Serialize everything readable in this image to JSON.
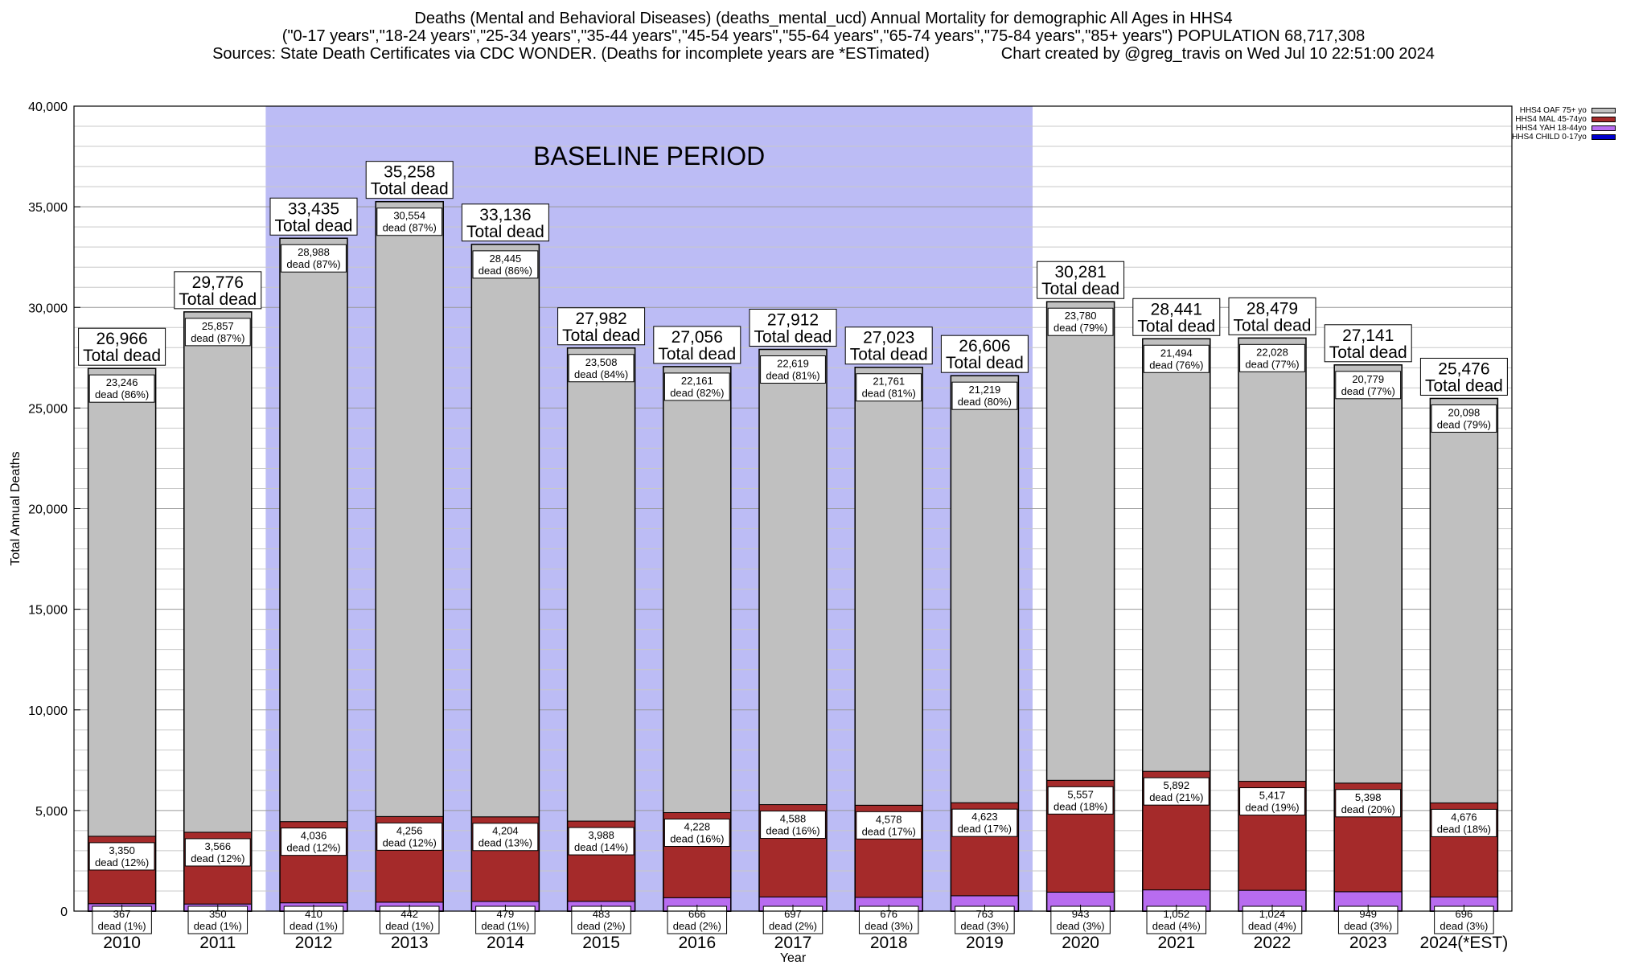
{
  "header": {
    "title_line1": "Deaths (Mental and Behavioral Diseases) (deaths_mental_ucd) Annual Mortality for demographic All Ages in HHS4",
    "title_line2": "(\"0-17 years\",\"18-24 years\",\"25-34 years\",\"35-44 years\",\"45-54 years\",\"55-64 years\",\"65-74 years\",\"75-84 years\",\"85+ years\") POPULATION 68,717,308",
    "title_line3": "Sources: State Death Certificates via CDC WONDER. (Deaths for incomplete years are *ESTimated)                Chart created by @greg_travis on Wed Jul 10 22:51:00 2024"
  },
  "legend": [
    {
      "name": "HHS4 OAF 75+ yo",
      "color": "#c0c0c0"
    },
    {
      "name": "HHS4 MAL 45-74yo",
      "color": "#a52a2a"
    },
    {
      "name": "HHS4 YAH 18-44yo",
      "color": "#b86cf0"
    },
    {
      "name": "HHS4 CHILD 0-17yo",
      "color": "#0000cc"
    }
  ],
  "chart_data": {
    "type": "bar",
    "stacked": true,
    "xlabel": "Year",
    "ylabel": "Total Annual Deaths",
    "ylim": [
      0,
      40000
    ],
    "yticks": [
      0,
      5000,
      10000,
      15000,
      20000,
      25000,
      30000,
      35000,
      40000
    ],
    "ytick_labels": [
      "0",
      "5,000",
      "10,000",
      "15,000",
      "20,000",
      "25,000",
      "30,000",
      "35,000",
      "40,000"
    ],
    "grid": true,
    "legend_position": "top-right",
    "annotation": "BASELINE PERIOD",
    "baseline_period": [
      "2012",
      "2019"
    ],
    "categories": [
      "2010",
      "2011",
      "2012",
      "2013",
      "2014",
      "2015",
      "2016",
      "2017",
      "2018",
      "2019",
      "2020",
      "2021",
      "2022",
      "2023",
      "2024(*EST)"
    ],
    "totals": [
      26966,
      29776,
      33435,
      35258,
      33136,
      27982,
      27056,
      27912,
      27023,
      26606,
      30281,
      28441,
      28479,
      27141,
      25476
    ],
    "total_labels": [
      "26,966",
      "29,776",
      "33,435",
      "35,258",
      "33,136",
      "27,982",
      "27,056",
      "27,912",
      "27,023",
      "26,606",
      "30,281",
      "28,441",
      "28,479",
      "27,141",
      "25,476"
    ],
    "total_suffix": "Total dead",
    "series": [
      {
        "name": "HHS4 CHILD 0-17yo",
        "color": "#0000cc",
        "values": [
          3,
          3,
          3,
          3,
          3,
          3,
          1,
          8,
          8,
          1,
          1,
          3,
          10,
          15,
          6
        ]
      },
      {
        "name": "HHS4 YAH 18-44yo",
        "color": "#b86cf0",
        "values": [
          367,
          350,
          410,
          442,
          479,
          483,
          666,
          697,
          676,
          763,
          943,
          1052,
          1024,
          949,
          696
        ],
        "labels": [
          "367\ndead (1%)",
          "350\ndead (1%)",
          "410\ndead (1%)",
          "442\ndead (1%)",
          "479\ndead (1%)",
          "483\ndead (2%)",
          "666\ndead (2%)",
          "697\ndead (2%)",
          "676\ndead (3%)",
          "763\ndead (3%)",
          "943\ndead (3%)",
          "1,052\ndead (4%)",
          "1,024\ndead (4%)",
          "949\ndead (3%)",
          "696\ndead (3%)"
        ]
      },
      {
        "name": "HHS4 MAL 45-74yo",
        "color": "#a52a2a",
        "values": [
          3350,
          3566,
          4036,
          4256,
          4204,
          3988,
          4228,
          4588,
          4578,
          4623,
          5557,
          5892,
          5417,
          5398,
          4676
        ],
        "labels": [
          "3,350\ndead (12%)",
          "3,566\ndead (12%)",
          "4,036\ndead (12%)",
          "4,256\ndead (12%)",
          "4,204\ndead (13%)",
          "3,988\ndead (14%)",
          "4,228\ndead (16%)",
          "4,588\ndead (16%)",
          "4,578\ndead (17%)",
          "4,623\ndead (17%)",
          "5,557\ndead (18%)",
          "5,892\ndead (21%)",
          "5,417\ndead (19%)",
          "5,398\ndead (20%)",
          "4,676\ndead (18%)"
        ]
      },
      {
        "name": "HHS4 OAF 75+ yo",
        "color": "#c0c0c0",
        "values": [
          23246,
          25857,
          28988,
          30554,
          28445,
          23508,
          22161,
          22619,
          21761,
          21219,
          23780,
          21494,
          22028,
          20779,
          20098
        ],
        "labels": [
          "23,246\ndead (86%)",
          "25,857\ndead (87%)",
          "28,988\ndead (87%)",
          "30,554\ndead (87%)",
          "28,445\ndead (86%)",
          "23,508\ndead (84%)",
          "22,161\ndead (82%)",
          "22,619\ndead (81%)",
          "21,761\ndead (81%)",
          "21,219\ndead (80%)",
          "23,780\ndead (79%)",
          "21,494\ndead (76%)",
          "22,028\ndead (77%)",
          "20,779\ndead (77%)",
          "20,098\ndead (79%)"
        ]
      }
    ]
  }
}
